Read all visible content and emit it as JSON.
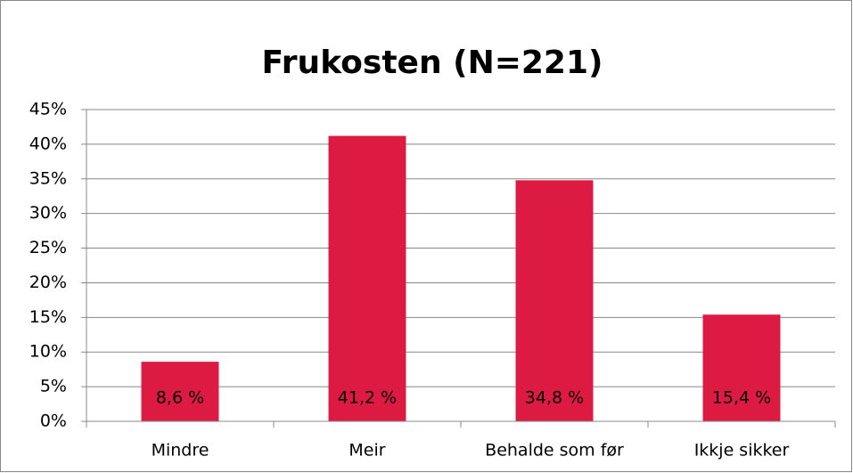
{
  "chart_data": {
    "type": "bar",
    "title": "Frukosten (N=221)",
    "categories": [
      "Mindre",
      "Meir",
      "Behalde som før",
      "Ikkje sikker"
    ],
    "values": [
      8.6,
      41.2,
      34.8,
      15.4
    ],
    "value_labels": [
      "8,6 %",
      "41,2 %",
      "34,8 %",
      "15,4 %"
    ],
    "color": "#dc1a42",
    "ylim": [
      0,
      45
    ],
    "yticks": [
      {
        "value": 0,
        "label": "0%"
      },
      {
        "value": 5,
        "label": "5%"
      },
      {
        "value": 10,
        "label": "10%"
      },
      {
        "value": 15,
        "label": "15%"
      },
      {
        "value": 20,
        "label": "20%"
      },
      {
        "value": 25,
        "label": "25%"
      },
      {
        "value": 30,
        "label": "30%"
      },
      {
        "value": 35,
        "label": "35%"
      },
      {
        "value": 40,
        "label": "40%"
      },
      {
        "value": 45,
        "label": "45%"
      }
    ],
    "grid": true
  }
}
